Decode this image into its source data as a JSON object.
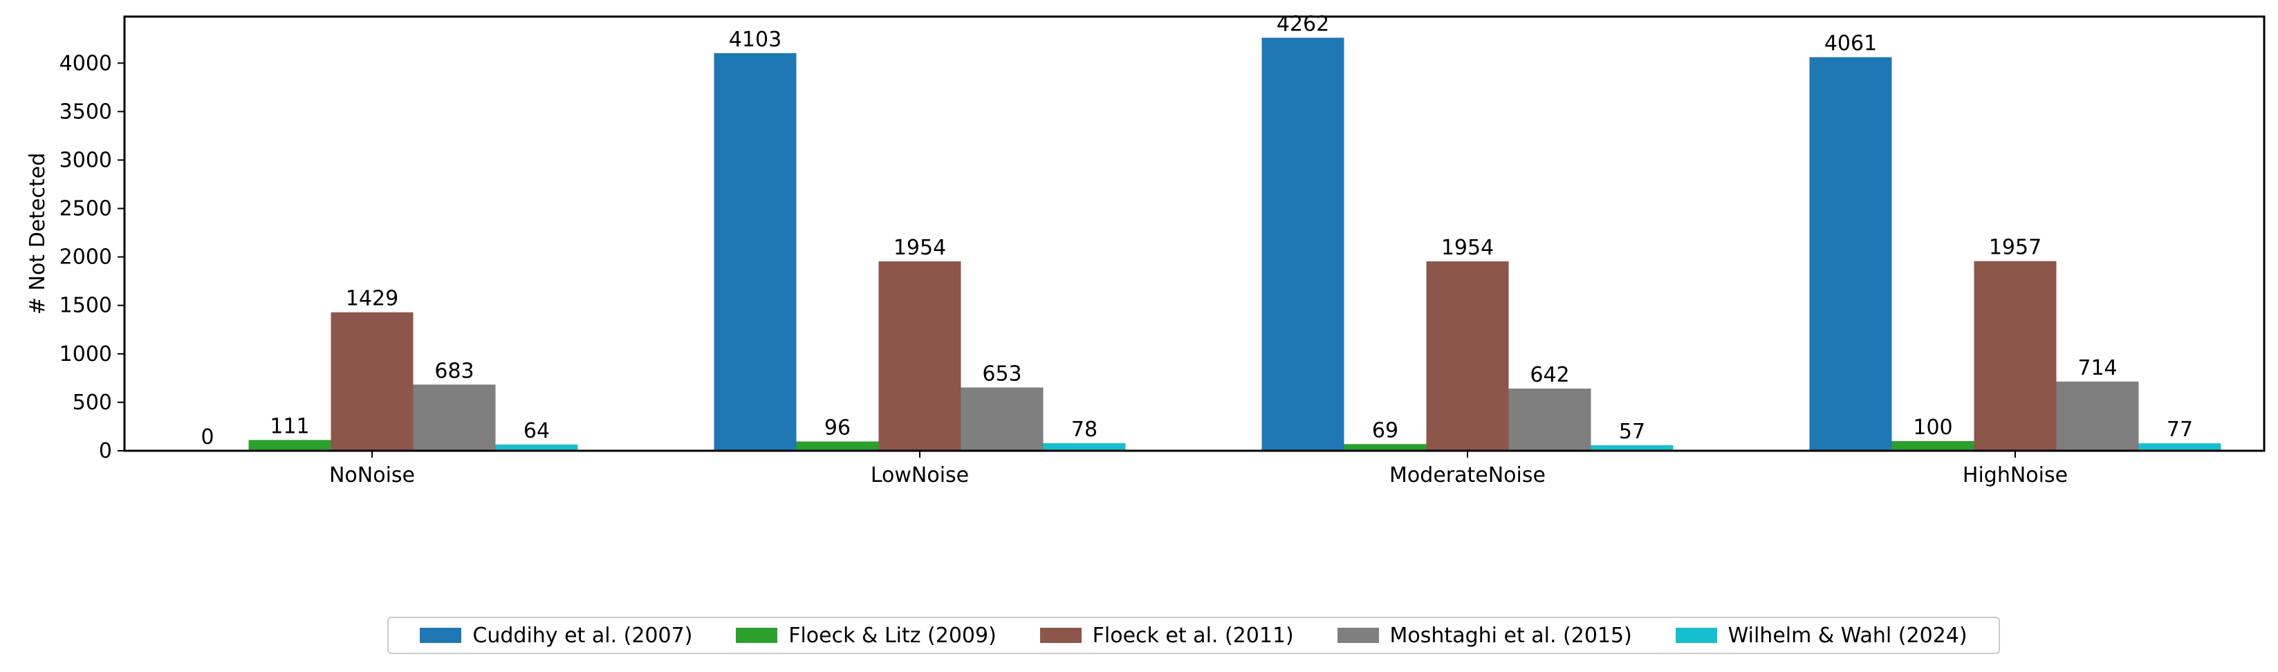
{
  "chart_data": {
    "type": "bar",
    "ylabel": "# Not Detected",
    "xlabel": "",
    "ylim": [
      0,
      4480
    ],
    "yticks": [
      0,
      500,
      1000,
      1500,
      2000,
      2500,
      3000,
      3500,
      4000
    ],
    "categories": [
      "NoNoise",
      "LowNoise",
      "ModerateNoise",
      "HighNoise"
    ],
    "series": [
      {
        "name": "Cuddihy et al. (2007)",
        "color": "#1f77b4",
        "values": [
          0,
          4103,
          4262,
          4061
        ]
      },
      {
        "name": "Floeck & Litz (2009)",
        "color": "#2ca02c",
        "values": [
          111,
          96,
          69,
          100
        ]
      },
      {
        "name": "Floeck et al. (2011)",
        "color": "#8c564b",
        "values": [
          1429,
          1954,
          1954,
          1957
        ]
      },
      {
        "name": "Moshtaghi et al. (2015)",
        "color": "#7f7f7f",
        "values": [
          683,
          653,
          642,
          714
        ]
      },
      {
        "name": "Wilhelm & Wahl (2024)",
        "color": "#17becf",
        "values": [
          64,
          78,
          57,
          77
        ]
      }
    ],
    "legend_position": "bottom-center",
    "grid": false
  }
}
